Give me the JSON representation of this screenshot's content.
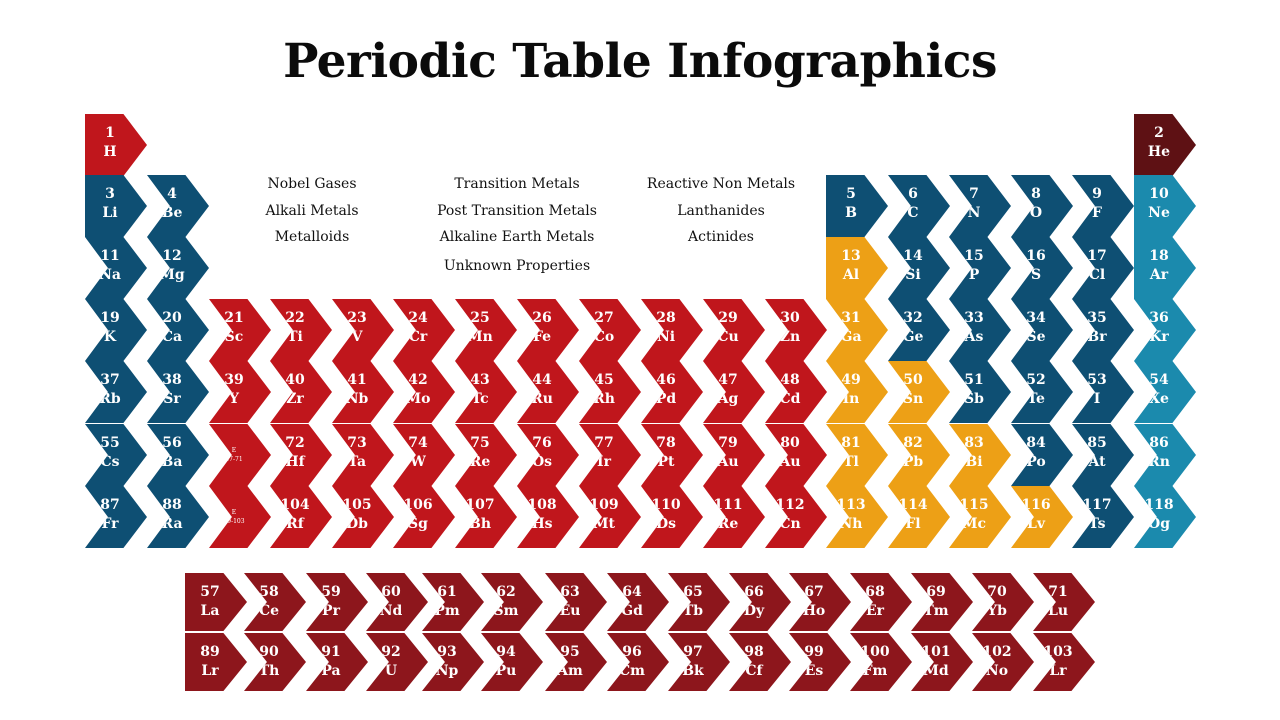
{
  "title": "Periodic Table Infographics",
  "colors": {
    "red": "#c0161c",
    "blue": "#0e4f73",
    "teal": "#1b8aad",
    "orange": "#eda016",
    "dark": "#8d161c",
    "darkest": "#5e1114"
  },
  "legend": [
    "Nobel Gases",
    "Alkali  Metals",
    "Metalloids",
    "Transition Metals",
    "Post Transition Metals",
    "Alkaline Earth Metals",
    "Unknown Properties",
    "Reactive Non Metals",
    "Lanthanides",
    "Actinides"
  ],
  "elements": [
    {
      "num": "1",
      "sym": "H",
      "color": "red"
    },
    {
      "num": "2",
      "sym": "He",
      "color": "darkest"
    },
    {
      "num": "3",
      "sym": "Li",
      "color": "blue"
    },
    {
      "num": "4",
      "sym": "Be",
      "color": "blue"
    },
    {
      "num": "11",
      "sym": "Na",
      "color": "blue"
    },
    {
      "num": "12",
      "sym": "Mg",
      "color": "blue"
    },
    {
      "num": "19",
      "sym": "K",
      "color": "blue"
    },
    {
      "num": "20",
      "sym": "Ca",
      "color": "blue"
    },
    {
      "num": "37",
      "sym": "Rb",
      "color": "blue"
    },
    {
      "num": "38",
      "sym": "Sr",
      "color": "blue"
    },
    {
      "num": "55",
      "sym": "Cs",
      "color": "blue"
    },
    {
      "num": "56",
      "sym": "Ba",
      "color": "blue"
    },
    {
      "num": "87",
      "sym": "Fr",
      "color": "blue"
    },
    {
      "num": "88",
      "sym": "Ra",
      "color": "blue"
    },
    {
      "num": "21",
      "sym": "Sc",
      "color": "red"
    },
    {
      "num": "22",
      "sym": "Ti",
      "color": "red"
    },
    {
      "num": "23",
      "sym": "V",
      "color": "red"
    },
    {
      "num": "24",
      "sym": "Cr",
      "color": "red"
    },
    {
      "num": "25",
      "sym": "Mn",
      "color": "red"
    },
    {
      "num": "26",
      "sym": "Fe",
      "color": "red"
    },
    {
      "num": "27",
      "sym": "Co",
      "color": "red"
    },
    {
      "num": "28",
      "sym": "Ni",
      "color": "red"
    },
    {
      "num": "29",
      "sym": "Cu",
      "color": "red"
    },
    {
      "num": "30",
      "sym": "Zn",
      "color": "red"
    },
    {
      "num": "39",
      "sym": "Y",
      "color": "red"
    },
    {
      "num": "40",
      "sym": "Zr",
      "color": "red"
    },
    {
      "num": "41",
      "sym": "Nb",
      "color": "red"
    },
    {
      "num": "42",
      "sym": "Mo",
      "color": "red"
    },
    {
      "num": "43",
      "sym": "Tc",
      "color": "red"
    },
    {
      "num": "44",
      "sym": "Ru",
      "color": "red"
    },
    {
      "num": "45",
      "sym": "Rh",
      "color": "red"
    },
    {
      "num": "46",
      "sym": "Pd",
      "color": "red"
    },
    {
      "num": "47",
      "sym": "Ag",
      "color": "red"
    },
    {
      "num": "48",
      "sym": "Cd",
      "color": "red"
    },
    {
      "num": "E",
      "sym": "57-71",
      "color": "red",
      "tiny": true
    },
    {
      "num": "72",
      "sym": "Hf",
      "color": "red"
    },
    {
      "num": "73",
      "sym": "Ta",
      "color": "red"
    },
    {
      "num": "74",
      "sym": "W",
      "color": "red"
    },
    {
      "num": "75",
      "sym": "Re",
      "color": "red"
    },
    {
      "num": "76",
      "sym": "Os",
      "color": "red"
    },
    {
      "num": "77",
      "sym": "Ir",
      "color": "red"
    },
    {
      "num": "78",
      "sym": "Pt",
      "color": "red"
    },
    {
      "num": "79",
      "sym": "Au",
      "color": "red"
    },
    {
      "num": "80",
      "sym": "Au",
      "color": "red"
    },
    {
      "num": "E",
      "sym": "89-103",
      "color": "red",
      "tiny": true
    },
    {
      "num": "104",
      "sym": "Rf",
      "color": "red"
    },
    {
      "num": "105",
      "sym": "Db",
      "color": "red"
    },
    {
      "num": "106",
      "sym": "Sg",
      "color": "red"
    },
    {
      "num": "107",
      "sym": "Bh",
      "color": "red"
    },
    {
      "num": "108",
      "sym": "Hs",
      "color": "red"
    },
    {
      "num": "109",
      "sym": "Mt",
      "color": "red"
    },
    {
      "num": "110",
      "sym": "Ds",
      "color": "red"
    },
    {
      "num": "111",
      "sym": "Re",
      "color": "red"
    },
    {
      "num": "112",
      "sym": "Cn",
      "color": "red"
    },
    {
      "num": "5",
      "sym": "B",
      "color": "blue"
    },
    {
      "num": "6",
      "sym": "C",
      "color": "blue"
    },
    {
      "num": "7",
      "sym": "N",
      "color": "blue"
    },
    {
      "num": "8",
      "sym": "O",
      "color": "blue"
    },
    {
      "num": "9",
      "sym": "F",
      "color": "blue"
    },
    {
      "num": "10",
      "sym": "Ne",
      "color": "teal"
    },
    {
      "num": "13",
      "sym": "Al",
      "color": "orange"
    },
    {
      "num": "14",
      "sym": "Si",
      "color": "blue"
    },
    {
      "num": "15",
      "sym": "P",
      "color": "blue"
    },
    {
      "num": "16",
      "sym": "S",
      "color": "blue"
    },
    {
      "num": "17",
      "sym": "Cl",
      "color": "blue"
    },
    {
      "num": "18",
      "sym": "Ar",
      "color": "teal"
    },
    {
      "num": "31",
      "sym": "Ga",
      "color": "orange"
    },
    {
      "num": "32",
      "sym": "Ge",
      "color": "blue"
    },
    {
      "num": "33",
      "sym": "As",
      "color": "blue"
    },
    {
      "num": "34",
      "sym": "Se",
      "color": "blue"
    },
    {
      "num": "35",
      "sym": "Br",
      "color": "blue"
    },
    {
      "num": "36",
      "sym": "Kr",
      "color": "teal"
    },
    {
      "num": "49",
      "sym": "In",
      "color": "orange"
    },
    {
      "num": "50",
      "sym": "Sn",
      "color": "orange"
    },
    {
      "num": "51",
      "sym": "Sb",
      "color": "blue"
    },
    {
      "num": "52",
      "sym": "Te",
      "color": "blue"
    },
    {
      "num": "53",
      "sym": "I",
      "color": "blue"
    },
    {
      "num": "54",
      "sym": "Xe",
      "color": "teal"
    },
    {
      "num": "81",
      "sym": "Tl",
      "color": "orange"
    },
    {
      "num": "82",
      "sym": "Pb",
      "color": "orange"
    },
    {
      "num": "83",
      "sym": "Bi",
      "color": "orange"
    },
    {
      "num": "84",
      "sym": "Po",
      "color": "blue"
    },
    {
      "num": "85",
      "sym": "At",
      "color": "blue"
    },
    {
      "num": "86",
      "sym": "Rn",
      "color": "teal"
    },
    {
      "num": "113",
      "sym": "Nh",
      "color": "orange"
    },
    {
      "num": "114",
      "sym": "Fl",
      "color": "orange"
    },
    {
      "num": "115",
      "sym": "Mc",
      "color": "orange"
    },
    {
      "num": "116",
      "sym": "Lv",
      "color": "orange"
    },
    {
      "num": "117",
      "sym": "Ts",
      "color": "blue"
    },
    {
      "num": "118",
      "sym": "Og",
      "color": "teal"
    },
    {
      "num": "57",
      "sym": "La",
      "color": "dark"
    },
    {
      "num": "58",
      "sym": "Ce",
      "color": "dark"
    },
    {
      "num": "59",
      "sym": "Pr",
      "color": "dark"
    },
    {
      "num": "60",
      "sym": "Nd",
      "color": "dark"
    },
    {
      "num": "61",
      "sym": "Pm",
      "color": "dark"
    },
    {
      "num": "62",
      "sym": "Sm",
      "color": "dark"
    },
    {
      "num": "63",
      "sym": "Eu",
      "color": "dark"
    },
    {
      "num": "64",
      "sym": "Gd",
      "color": "dark"
    },
    {
      "num": "65",
      "sym": "Tb",
      "color": "dark"
    },
    {
      "num": "66",
      "sym": "Dy",
      "color": "dark"
    },
    {
      "num": "67",
      "sym": "Ho",
      "color": "dark"
    },
    {
      "num": "68",
      "sym": "Er",
      "color": "dark"
    },
    {
      "num": "69",
      "sym": "Tm",
      "color": "dark"
    },
    {
      "num": "70",
      "sym": "Yb",
      "color": "dark"
    },
    {
      "num": "71",
      "sym": "Lu",
      "color": "dark"
    },
    {
      "num": "89",
      "sym": "Lr",
      "color": "dark"
    },
    {
      "num": "90",
      "sym": "Th",
      "color": "dark"
    },
    {
      "num": "91",
      "sym": "Pa",
      "color": "dark"
    },
    {
      "num": "92",
      "sym": "U",
      "color": "dark"
    },
    {
      "num": "93",
      "sym": "Np",
      "color": "dark"
    },
    {
      "num": "94",
      "sym": "Pu",
      "color": "dark"
    },
    {
      "num": "95",
      "sym": "Am",
      "color": "dark"
    },
    {
      "num": "96",
      "sym": "Cm",
      "color": "dark"
    },
    {
      "num": "97",
      "sym": "Bk",
      "color": "dark"
    },
    {
      "num": "98",
      "sym": "Cf",
      "color": "dark"
    },
    {
      "num": "99",
      "sym": "Es",
      "color": "dark"
    },
    {
      "num": "100",
      "sym": "Fm",
      "color": "dark"
    },
    {
      "num": "101",
      "sym": "Md",
      "color": "dark"
    },
    {
      "num": "102",
      "sym": "No",
      "color": "dark"
    },
    {
      "num": "103",
      "sym": "Lr",
      "color": "dark"
    }
  ]
}
